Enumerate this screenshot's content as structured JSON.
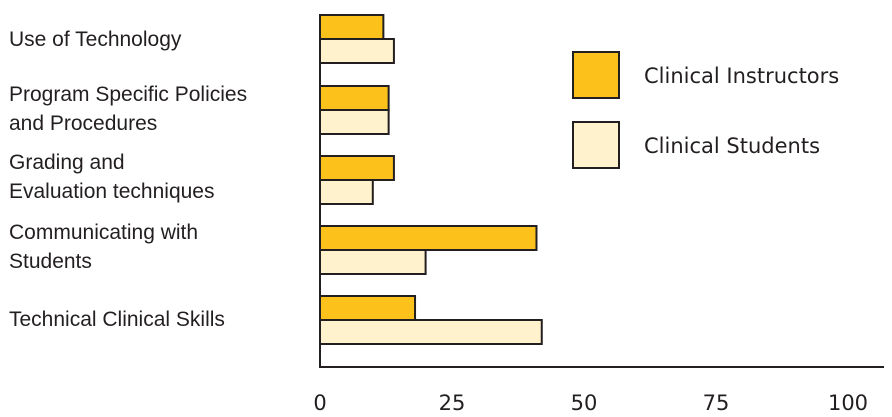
{
  "chart_data": {
    "type": "bar",
    "orientation": "horizontal",
    "categories": [
      "Use of Technology",
      "Program Specific Policies and Procedures",
      "Grading and Evaluation techniques",
      "Communicating with Students",
      "Technical Clinical Skills"
    ],
    "category_lines": [
      [
        "Use of Technology"
      ],
      [
        "Program Specific Policies",
        "and Procedures"
      ],
      [
        "Grading and",
        "Evaluation techniques"
      ],
      [
        "Communicating with",
        "Students"
      ],
      [
        "Technical Clinical Skills"
      ]
    ],
    "series": [
      {
        "name": "Clinical Instructors",
        "values": [
          12,
          13,
          14,
          41,
          18
        ],
        "color": "#fcc21b"
      },
      {
        "name": "Clinical Students",
        "values": [
          14,
          13,
          10,
          20,
          42
        ],
        "color": "#fff2cc"
      }
    ],
    "xlim": [
      0,
      100
    ],
    "xticks": [
      "0",
      "25",
      "50",
      "75",
      "100"
    ],
    "legend_position": "right",
    "grid": false,
    "title": "",
    "xlabel": "",
    "ylabel": ""
  }
}
